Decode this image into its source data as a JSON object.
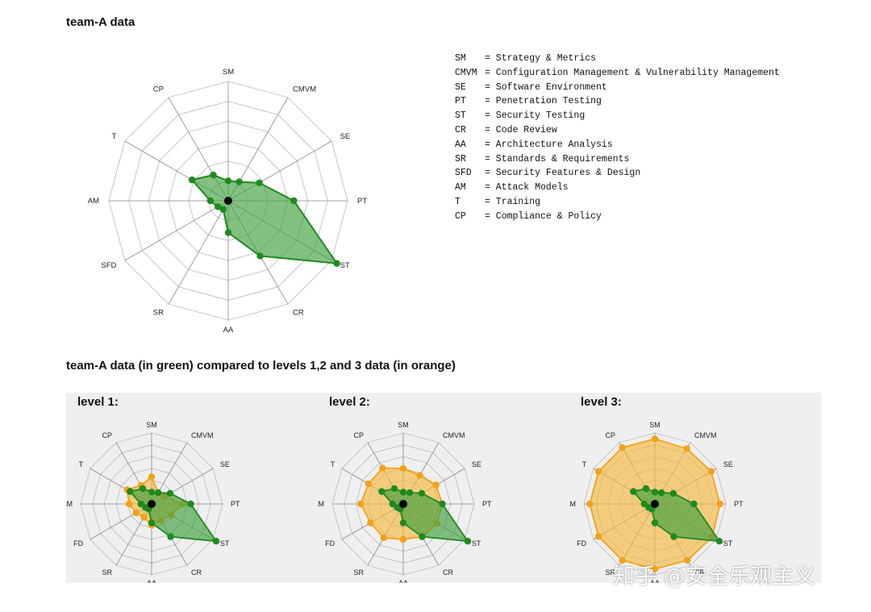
{
  "titles": {
    "main": "team-A data",
    "comparison": "team-A data (in green) compared to levels 1,2 and 3 data (in orange)"
  },
  "colors": {
    "team": "#1e8a1e",
    "team_fill": "#3f9f3f",
    "level": "#f2a21a",
    "level_fill": "#f5b841",
    "grid": "#b8b8b8",
    "center": "#000000"
  },
  "legend": [
    {
      "abbr": "SM",
      "name": "Strategy & Metrics"
    },
    {
      "abbr": "CMVM",
      "name": "Configuration Management & Vulnerability Management"
    },
    {
      "abbr": "SE",
      "name": "Software Environment"
    },
    {
      "abbr": "PT",
      "name": "Penetration Testing"
    },
    {
      "abbr": "ST",
      "name": "Security Testing"
    },
    {
      "abbr": "CR",
      "name": "Code Review"
    },
    {
      "abbr": "AA",
      "name": "Architecture Analysis"
    },
    {
      "abbr": "SR",
      "name": "Standards & Requirements"
    },
    {
      "abbr": "SFD",
      "name": "Security Features & Design"
    },
    {
      "abbr": "AM",
      "name": "Attack Models"
    },
    {
      "abbr": "T",
      "name": "Training"
    },
    {
      "abbr": "CP",
      "name": "Compliance & Policy"
    }
  ],
  "chart_data": [
    {
      "type": "radar",
      "title": "team-A data",
      "axes": [
        "SM",
        "CMVM",
        "SE",
        "PT",
        "ST",
        "CR",
        "AA",
        "SR",
        "SFD",
        "AM",
        "T",
        "CP"
      ],
      "rmax": 6,
      "grid_rings": 6,
      "series": [
        {
          "name": "team-A",
          "color": "green",
          "values": [
            1.0,
            1.1,
            1.8,
            3.3,
            6.3,
            3.2,
            1.6,
            0.5,
            0.6,
            0.9,
            2.1,
            1.5
          ]
        }
      ]
    },
    {
      "type": "radar",
      "title": "level 1:",
      "axes": [
        "SM",
        "CMVM",
        "SE",
        "PT",
        "ST",
        "CR",
        "AA",
        "SR",
        "SFD",
        "AM",
        "T",
        "CP"
      ],
      "axis_labels": [
        "SM",
        "CMVM",
        "SE",
        "PT",
        "ST",
        "CR",
        "AA",
        "SR",
        "FD",
        "AM",
        "T",
        "CP"
      ],
      "rmax": 6,
      "grid_rings": 6,
      "series": [
        {
          "name": "team-A",
          "color": "green",
          "values": [
            1.0,
            1.1,
            1.8,
            3.3,
            6.3,
            3.2,
            1.6,
            0.5,
            0.6,
            0.9,
            2.1,
            1.5
          ]
        },
        {
          "name": "level 1",
          "color": "orange",
          "values": [
            2.3,
            1.1,
            1.3,
            2.6,
            1.9,
            1.6,
            1.8,
            1.3,
            1.5,
            1.9,
            2.4,
            1.8
          ]
        }
      ]
    },
    {
      "type": "radar",
      "title": "level 2:",
      "axes": [
        "SM",
        "CMVM",
        "SE",
        "PT",
        "ST",
        "CR",
        "AA",
        "SR",
        "SFD",
        "AM",
        "T",
        "CP"
      ],
      "axis_labels": [
        "SM",
        "CMVM",
        "SE",
        "PT",
        "ST",
        "CR",
        "AA",
        "SR",
        "FD",
        "AM",
        "T",
        "CP"
      ],
      "rmax": 6,
      "grid_rings": 6,
      "series": [
        {
          "name": "team-A",
          "color": "green",
          "values": [
            1.0,
            1.1,
            1.8,
            3.3,
            6.3,
            3.2,
            1.6,
            0.5,
            0.6,
            0.9,
            2.1,
            1.5
          ]
        },
        {
          "name": "level 2",
          "color": "orange",
          "values": [
            3.0,
            2.8,
            3.2,
            3.3,
            3.3,
            3.2,
            3.0,
            3.3,
            3.2,
            3.6,
            3.4,
            3.5
          ]
        }
      ]
    },
    {
      "type": "radar",
      "title": "level 3:",
      "axes": [
        "SM",
        "CMVM",
        "SE",
        "PT",
        "ST",
        "CR",
        "AA",
        "SR",
        "SFD",
        "AM",
        "T",
        "CP"
      ],
      "axis_labels": [
        "SM",
        "CMVM",
        "SE",
        "PT",
        "ST",
        "CR",
        "AA",
        "SR",
        "FD",
        "AM",
        "T",
        "CP"
      ],
      "rmax": 6,
      "grid_rings": 6,
      "series": [
        {
          "name": "team-A",
          "color": "green",
          "values": [
            1.0,
            1.1,
            1.8,
            3.3,
            6.3,
            3.2,
            1.6,
            0.5,
            0.6,
            0.9,
            2.1,
            1.5
          ]
        },
        {
          "name": "level 3",
          "color": "orange",
          "values": [
            5.5,
            5.4,
            5.5,
            5.5,
            5.6,
            5.5,
            5.5,
            5.5,
            5.5,
            5.5,
            5.5,
            5.5
          ]
        }
      ]
    }
  ],
  "watermark": "知乎 @安全乐观主义"
}
